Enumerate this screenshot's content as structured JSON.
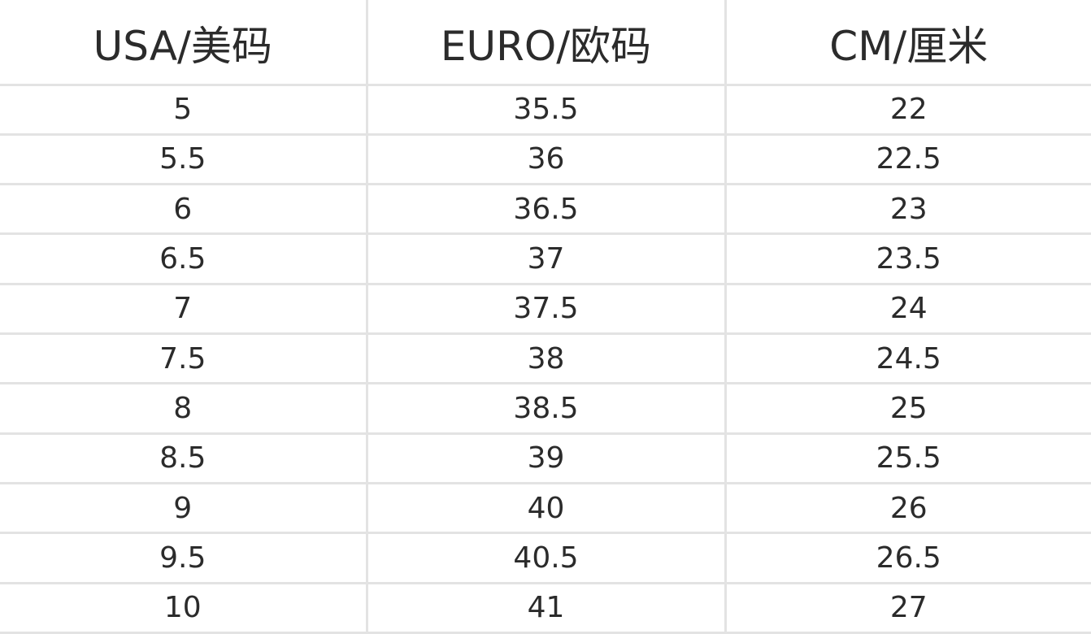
{
  "table": {
    "headers": [
      "USA/美码",
      "EURO/欧码",
      "CM/厘米"
    ],
    "rows": [
      [
        "5",
        "35.5",
        "22"
      ],
      [
        "5.5",
        "36",
        "22.5"
      ],
      [
        "6",
        "36.5",
        "23"
      ],
      [
        "6.5",
        "37",
        "23.5"
      ],
      [
        "7",
        "37.5",
        "24"
      ],
      [
        "7.5",
        "38",
        "24.5"
      ],
      [
        "8",
        "38.5",
        "25"
      ],
      [
        "8.5",
        "39",
        "25.5"
      ],
      [
        "9",
        "40",
        "26"
      ],
      [
        "9.5",
        "40.5",
        "26.5"
      ],
      [
        "10",
        "41",
        "27"
      ]
    ]
  },
  "colors": {
    "text": "#2b2b2b",
    "grid": "#e3e3e3",
    "background": "#ffffff"
  }
}
